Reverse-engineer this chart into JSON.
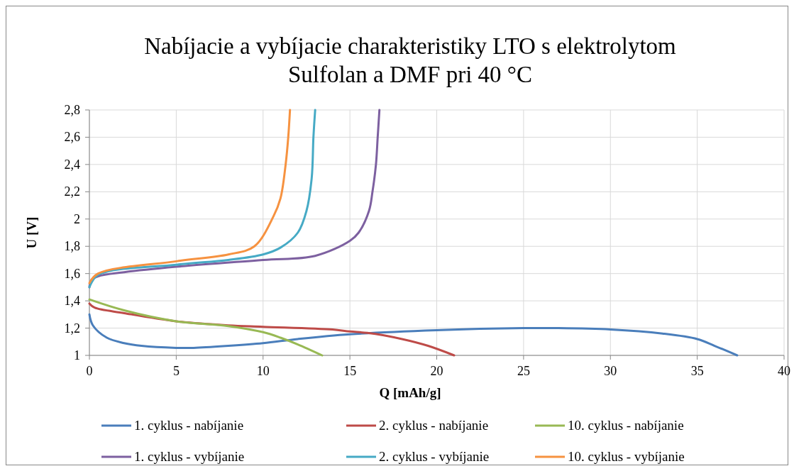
{
  "chart_data": {
    "type": "line",
    "title": "Nabíjacie a vybíjacie charakteristiky LTO s elektrolytom Sulfolan a DMF pri 40 °C",
    "xlabel": "Q [mAh/g]",
    "ylabel": "U [V]",
    "xlim": [
      0,
      40
    ],
    "xticks": [
      0,
      5,
      10,
      15,
      20,
      25,
      30,
      35,
      40
    ],
    "ylim": [
      1,
      2.8
    ],
    "yticks": [
      1,
      {
        "value": 1.2,
        "label": "1,2"
      },
      {
        "value": 1.4,
        "label": "1,4"
      },
      {
        "value": 1.6,
        "label": "1,6"
      },
      {
        "value": 1.8,
        "label": "1,8"
      },
      2,
      {
        "value": 2.2,
        "label": "2,2"
      },
      {
        "value": 2.4,
        "label": "2,4"
      },
      {
        "value": 2.6,
        "label": "2,6"
      },
      {
        "value": 2.8,
        "label": "2,8"
      }
    ],
    "grid": true,
    "legend": "bottom",
    "marker": "none",
    "line_style": "solid",
    "series": [
      {
        "name": "1. cyklus - nabíjanie",
        "color": "#4a7ebb",
        "x": [
          0,
          0.2,
          1,
          2,
          3,
          5,
          6,
          8,
          10,
          12,
          15,
          20,
          25,
          27,
          30,
          33,
          35,
          36,
          37.3
        ],
        "values": [
          1.3,
          1.22,
          1.13,
          1.09,
          1.07,
          1.055,
          1.055,
          1.07,
          1.09,
          1.12,
          1.155,
          1.185,
          1.2,
          1.2,
          1.19,
          1.16,
          1.12,
          1.07,
          1.0
        ]
      },
      {
        "name": "2. cyklus - nabíjanie",
        "color": "#be4b48",
        "x": [
          0,
          0.3,
          2,
          5,
          8,
          10,
          14,
          15,
          16,
          18,
          19.5,
          21
        ],
        "values": [
          1.38,
          1.35,
          1.31,
          1.25,
          1.22,
          1.21,
          1.19,
          1.175,
          1.165,
          1.12,
          1.07,
          1.0
        ]
      },
      {
        "name": "10. cyklus - nabíjanie",
        "color": "#98b954",
        "x": [
          0,
          2,
          5,
          8,
          10,
          11,
          12,
          13.4
        ],
        "values": [
          1.41,
          1.33,
          1.25,
          1.215,
          1.17,
          1.13,
          1.08,
          1.0
        ]
      },
      {
        "name": "1. cyklus - vybíjanie",
        "color": "#7d60a0",
        "x": [
          0,
          0.1,
          0.5,
          2,
          5,
          10,
          13,
          15,
          15.5,
          16.1,
          16.3,
          16.5,
          16.6,
          16.7
        ],
        "values": [
          1.5,
          1.55,
          1.58,
          1.61,
          1.65,
          1.7,
          1.73,
          1.84,
          1.9,
          2.06,
          2.2,
          2.4,
          2.6,
          2.8
        ]
      },
      {
        "name": "2. cyklus - vybíjanie",
        "color": "#46aac5",
        "x": [
          0,
          0.5,
          5,
          8,
          10,
          11,
          12,
          12.5,
          12.8,
          12.9,
          13.0
        ],
        "values": [
          1.5,
          1.59,
          1.665,
          1.7,
          1.74,
          1.79,
          1.9,
          2.06,
          2.3,
          2.6,
          2.8
        ]
      },
      {
        "name": "10. cyklus - vybíjanie",
        "color": "#f69240",
        "x": [
          0,
          0.5,
          5,
          8,
          9.5,
          10.6,
          11,
          11.3,
          11.45,
          11.55
        ],
        "values": [
          1.53,
          1.6,
          1.69,
          1.74,
          1.8,
          2.02,
          2.15,
          2.4,
          2.6,
          2.8
        ]
      }
    ]
  }
}
